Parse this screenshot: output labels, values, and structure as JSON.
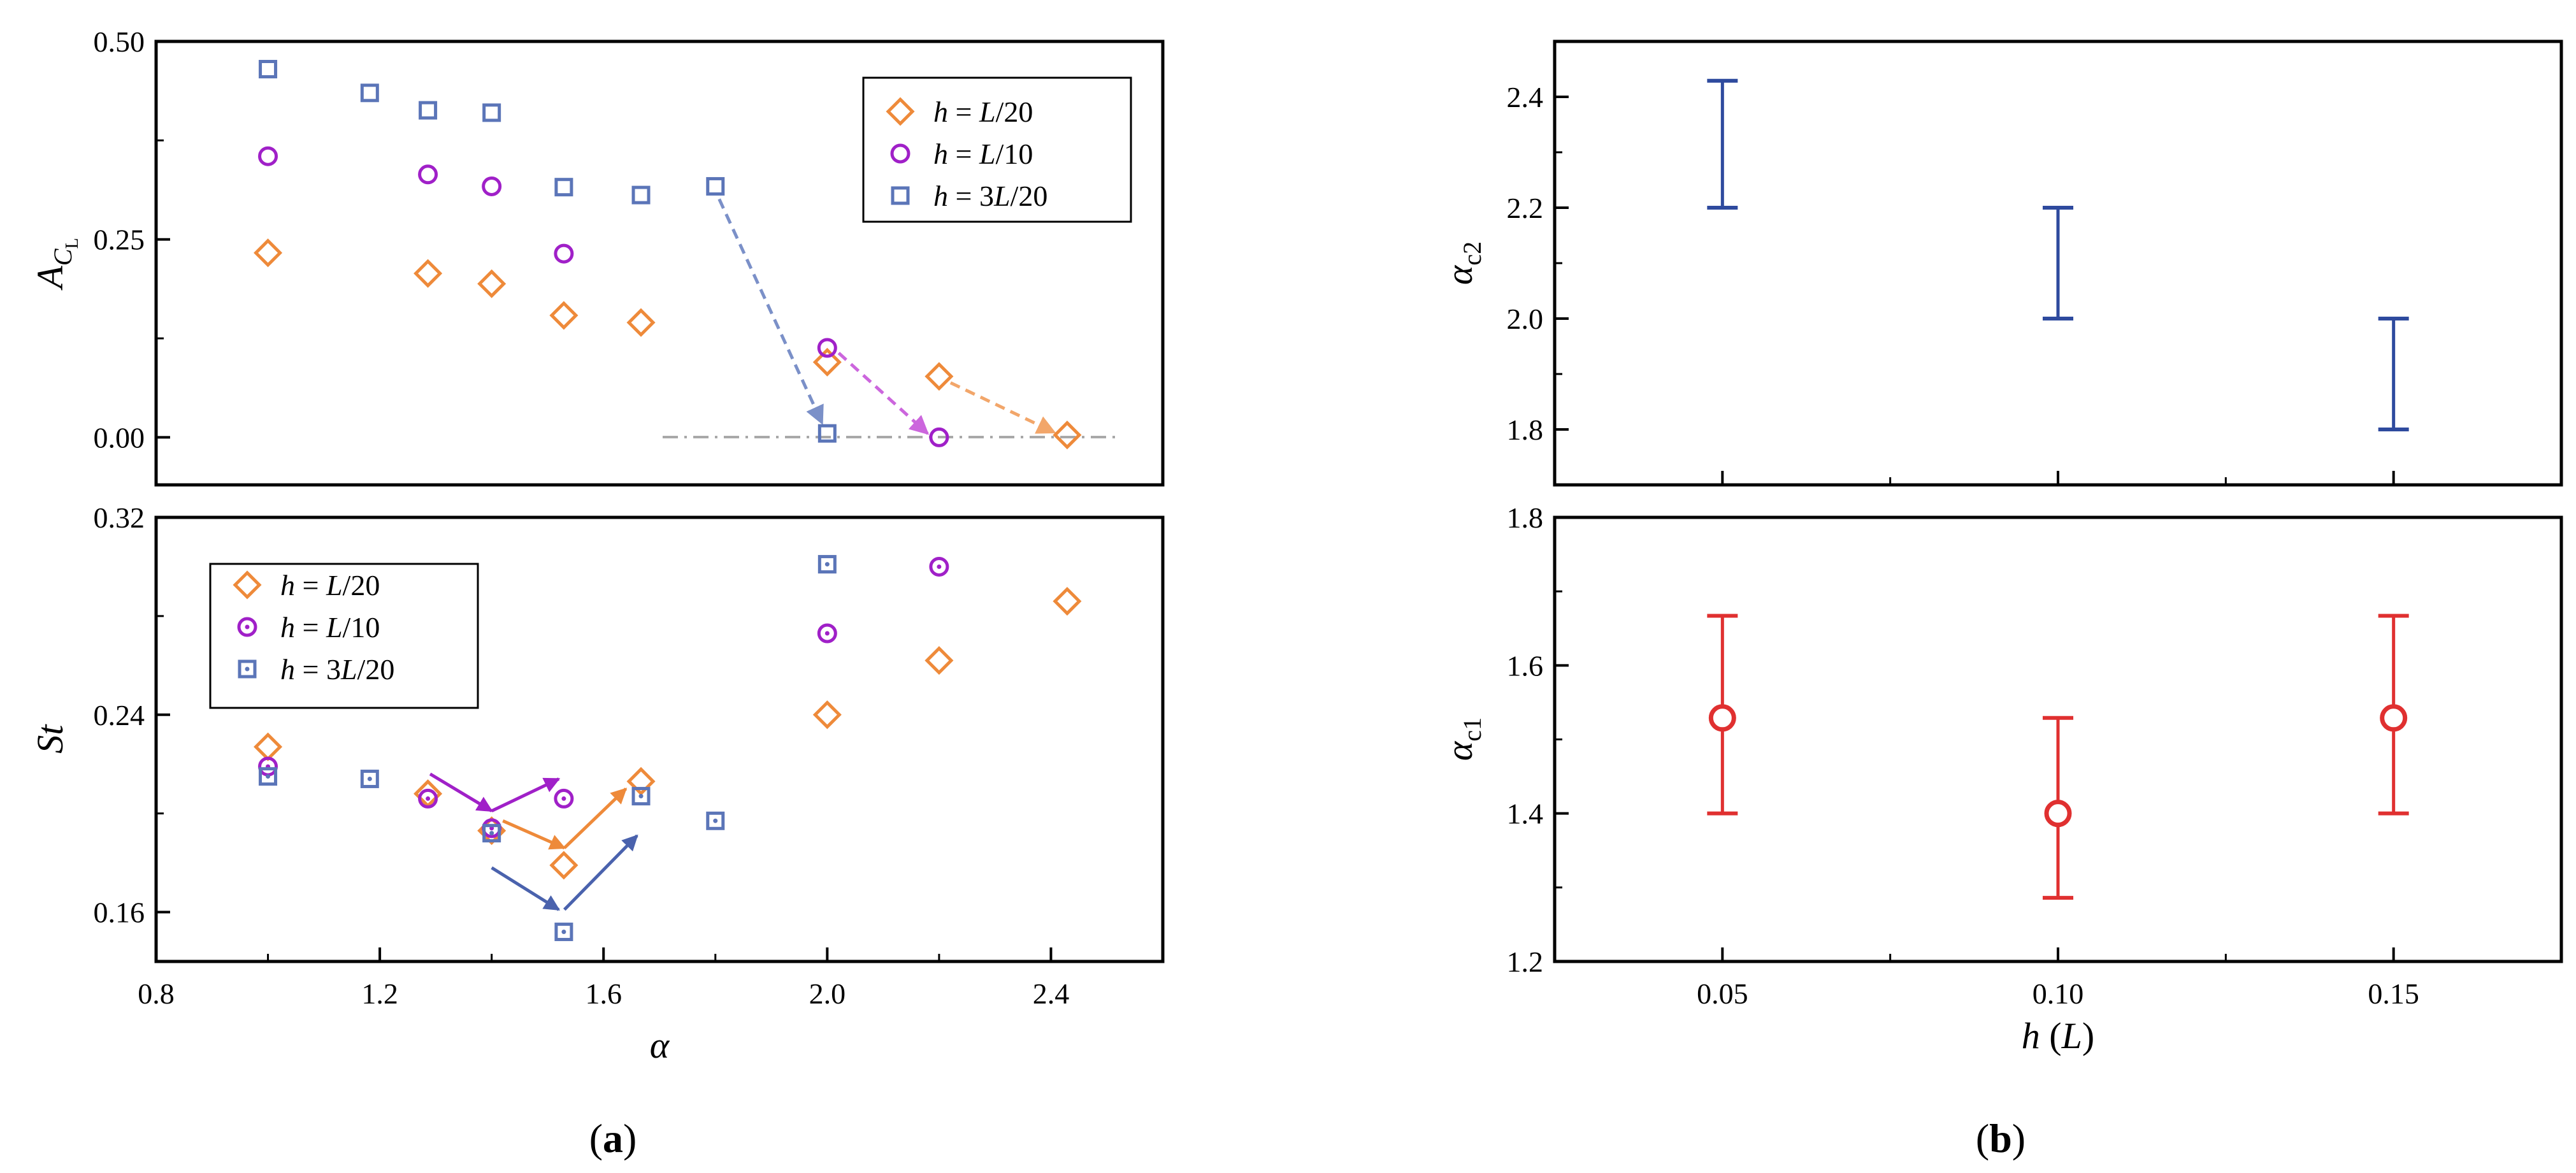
{
  "panel_labels": {
    "a": "a",
    "b": "b"
  },
  "chart_data": [
    {
      "type": "scatter",
      "panel": "a-top",
      "xlabel": "α",
      "ylabel": {
        "main": "A",
        "sub": "C",
        "subsub": "L"
      },
      "xlim": [
        0.8,
        2.6
      ],
      "ylim": [
        -0.06,
        0.5
      ],
      "yticks": [
        "0.00",
        "0.25",
        "0.50"
      ],
      "yticks_values": [
        0,
        0.25,
        0.5
      ],
      "legend_position": "top-right",
      "series": [
        {
          "name": "h = L/20",
          "label_left": "h",
          "label_eq": "= ",
          "label_frac": "L",
          "label_num": "",
          "label_den": "/20",
          "marker": "diamond",
          "color": "#ee8a3a",
          "x": [
            1.0,
            1.286,
            1.4,
            1.529,
            1.667,
            2.0,
            2.2,
            2.429
          ],
          "y": [
            0.233,
            0.207,
            0.194,
            0.154,
            0.145,
            0.095,
            0.077,
            0.003
          ]
        },
        {
          "name": "h = L/10",
          "label_left": "h",
          "label_eq": "= ",
          "label_frac": "L",
          "label_num": "",
          "label_den": "/10",
          "marker": "circle",
          "color": "#a020c8",
          "x": [
            1.0,
            1.286,
            1.4,
            1.529,
            2.0,
            2.2
          ],
          "y": [
            0.355,
            0.332,
            0.317,
            0.232,
            0.113,
            0.0
          ]
        },
        {
          "name": "h = 3L/20",
          "label_left": "h",
          "label_eq": "= ",
          "label_frac": "L",
          "label_num": "3",
          "label_den": "/20",
          "marker": "square",
          "color": "#5b75b8",
          "x": [
            1.0,
            1.182,
            1.286,
            1.4,
            1.529,
            1.667,
            1.8,
            2.0
          ],
          "y": [
            0.465,
            0.435,
            0.413,
            0.41,
            0.316,
            0.306,
            0.317,
            0.005
          ]
        }
      ]
    },
    {
      "type": "scatter",
      "panel": "a-bottom",
      "xlabel": "α",
      "ylabel": "St",
      "xlim": [
        0.8,
        2.6
      ],
      "ylim": [
        0.14,
        0.32
      ],
      "xticks": [
        "0.8",
        "1.2",
        "1.6",
        "2.0",
        "2.4"
      ],
      "xticks_values": [
        0.8,
        1.2,
        1.6,
        2.0,
        2.4
      ],
      "yticks": [
        "0.16",
        "0.24",
        "0.32"
      ],
      "yticks_values": [
        0.16,
        0.24,
        0.32
      ],
      "legend_position": "top-left",
      "series": [
        {
          "name": "h = L/20",
          "label_left": "h",
          "label_eq": "= ",
          "label_frac": "L",
          "label_num": "",
          "label_den": "/20",
          "marker": "diamond",
          "color": "#ee8a3a",
          "x": [
            1.0,
            1.286,
            1.4,
            1.529,
            1.667,
            2.0,
            2.2,
            2.429
          ],
          "y": [
            0.227,
            0.208,
            0.193,
            0.179,
            0.213,
            0.24,
            0.262,
            0.286
          ]
        },
        {
          "name": "h = L/10",
          "label_left": "h",
          "label_eq": "= ",
          "label_frac": "L",
          "label_num": "",
          "label_den": "/10",
          "marker": "circle-dot",
          "color": "#a020c8",
          "x": [
            1.0,
            1.286,
            1.4,
            1.529,
            2.0,
            2.2
          ],
          "y": [
            0.219,
            0.206,
            0.194,
            0.206,
            0.273,
            0.3
          ]
        },
        {
          "name": "h = 3L/20",
          "label_left": "h",
          "label_eq": "= ",
          "label_frac": "L",
          "label_num": "3",
          "label_den": "/20",
          "marker": "square-dot",
          "color": "#5b75b8",
          "x": [
            1.0,
            1.182,
            1.4,
            1.529,
            1.667,
            1.8,
            2.0
          ],
          "y": [
            0.215,
            0.214,
            0.192,
            0.152,
            0.207,
            0.197,
            0.301
          ]
        }
      ]
    },
    {
      "type": "errorbar",
      "panel": "b-top",
      "xlabel": "",
      "ylabel": {
        "main": "α",
        "sub": "c2"
      },
      "xlim": [
        0.025,
        0.175
      ],
      "ylim": [
        1.7,
        2.5
      ],
      "yticks": [
        "1.8",
        "2.0",
        "2.2",
        "2.4"
      ],
      "yticks_values": [
        1.8,
        2.0,
        2.2,
        2.4
      ],
      "color": "#2e4a9e",
      "x": [
        0.05,
        0.1,
        0.15
      ],
      "low": [
        2.2,
        2.0,
        1.8
      ],
      "high": [
        2.429,
        2.2,
        2.0
      ],
      "center": null
    },
    {
      "type": "errorbar",
      "panel": "b-bottom",
      "xlabel": {
        "main": "h",
        "unit": "L"
      },
      "ylabel": {
        "main": "α",
        "sub": "c1"
      },
      "xlim": [
        0.025,
        0.175
      ],
      "ylim": [
        1.2,
        1.8
      ],
      "xticks": [
        "0.05",
        "0.10",
        "0.15"
      ],
      "xticks_values": [
        0.05,
        0.1,
        0.15
      ],
      "yticks": [
        "1.2",
        "1.4",
        "1.6",
        "1.8"
      ],
      "yticks_values": [
        1.2,
        1.4,
        1.6,
        1.8
      ],
      "color": "#e03030",
      "x": [
        0.05,
        0.1,
        0.15
      ],
      "low": [
        1.4,
        1.286,
        1.4
      ],
      "high": [
        1.667,
        1.529,
        1.667
      ],
      "center": [
        1.529,
        1.4,
        1.529
      ]
    }
  ]
}
